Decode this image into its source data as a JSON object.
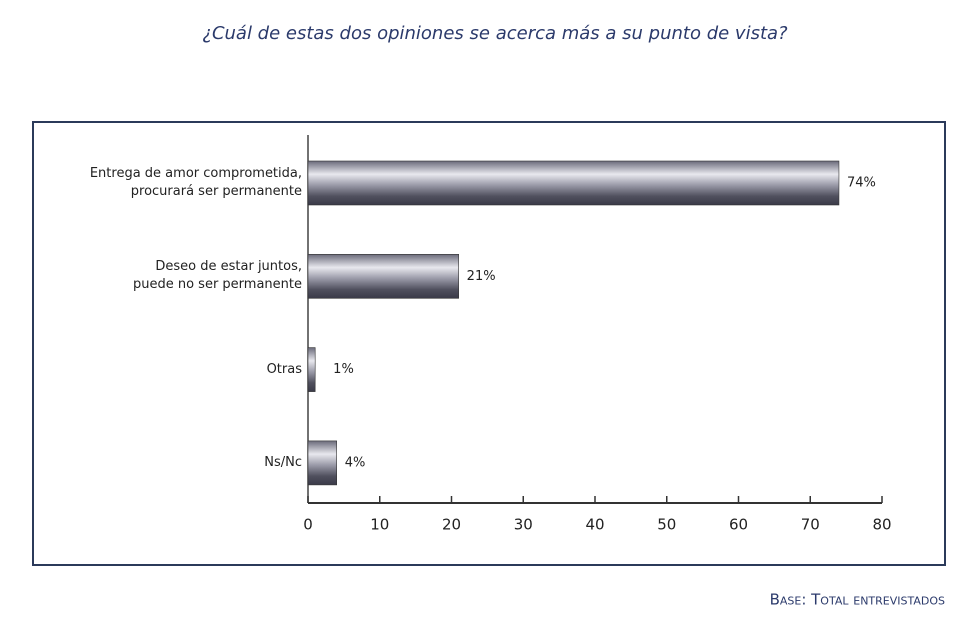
{
  "chart_data": {
    "type": "bar",
    "orientation": "horizontal",
    "title": "¿Cuál de estas dos opiniones se acerca más a su punto de vista?",
    "categories": [
      "Entrega de amor comprometida,\nprocurará ser permanente",
      "Deseo de estar juntos,\npuede no ser permanente",
      "Otras",
      "Ns/Nc"
    ],
    "values": [
      74,
      21,
      1,
      4
    ],
    "value_labels": [
      "74%",
      "21%",
      "1%",
      "4%"
    ],
    "xlim": [
      0,
      80
    ],
    "xticks": [
      0,
      10,
      20,
      30,
      40,
      50,
      60,
      70,
      80
    ],
    "footnote": "Base: Total entrevistados"
  }
}
